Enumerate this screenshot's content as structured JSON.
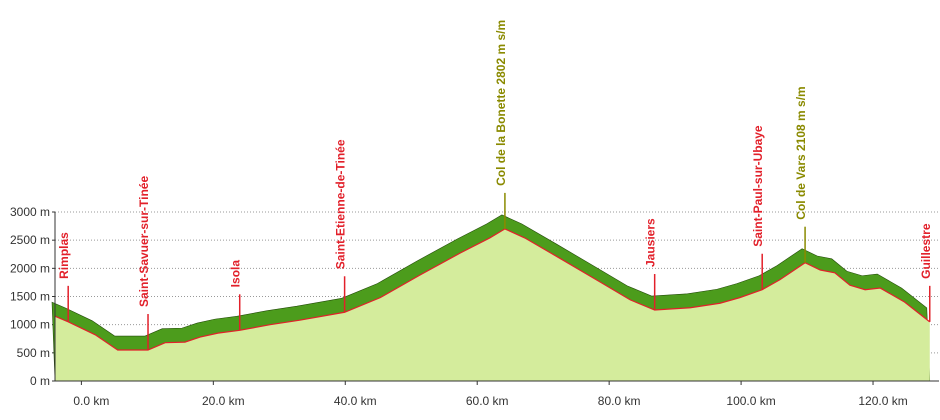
{
  "chart_data": {
    "type": "area",
    "x": [
      -4,
      -2.0,
      2.1,
      5.5,
      10.1,
      12.7,
      15.7,
      18.0,
      20.7,
      24.0,
      28.6,
      33.1,
      39.9,
      45.3,
      51.3,
      57.4,
      61.9,
      64.2,
      67.2,
      72.5,
      78.6,
      83.2,
      86.9,
      92.3,
      96.8,
      99.8,
      103.2,
      105.9,
      109.7,
      112.0,
      114.2,
      116.5,
      118.8,
      121.1,
      124.8,
      128.6
    ],
    "values": [
      1150,
      1050,
      820,
      550,
      550,
      680,
      690,
      780,
      850,
      900,
      1000,
      1080,
      1220,
      1480,
      1880,
      2270,
      2540,
      2700,
      2540,
      2180,
      1760,
      1440,
      1260,
      1300,
      1380,
      1480,
      1620,
      1800,
      2100,
      1970,
      1920,
      1700,
      1620,
      1650,
      1400,
      1050
    ],
    "color": "#d4ec9c",
    "top_color": "#4c9c1c",
    "line_color": "#e2202a",
    "xlim": [
      -4,
      130
    ],
    "xticks": [
      {
        "value": 0,
        "label": "0.0 km"
      },
      {
        "value": 20,
        "label": "20.0 km"
      },
      {
        "value": 40,
        "label": "40.0 km"
      },
      {
        "value": 60,
        "label": "60.0 km"
      },
      {
        "value": 80,
        "label": "80.0 km"
      },
      {
        "value": 100,
        "label": "100.0 km"
      },
      {
        "value": 120,
        "label": "120.0 km"
      }
    ],
    "ylim": [
      0,
      3000
    ],
    "yticks": [
      {
        "value": 0,
        "label": "0 m"
      },
      {
        "value": 500,
        "label": "500 m"
      },
      {
        "value": 1000,
        "label": "1000 m"
      },
      {
        "value": 1500,
        "label": "1500 m"
      },
      {
        "value": 2000,
        "label": "2000 m"
      },
      {
        "value": 2500,
        "label": "2500 m"
      },
      {
        "value": 3000,
        "label": "3000 m"
      }
    ],
    "grid": true,
    "annotations": [
      {
        "text": "Rimplas",
        "x": -2.0,
        "color": "#e2202a"
      },
      {
        "text": "Saint-Savuer-sur-Tinée",
        "x": 10.1,
        "color": "#e2202a"
      },
      {
        "text": "Isola",
        "x": 24.0,
        "color": "#e2202a"
      },
      {
        "text": "Saint-Etienne-de-Tinée",
        "x": 39.9,
        "color": "#e2202a"
      },
      {
        "text": "Col de la Bonette 2802 m s/m",
        "x": 64.2,
        "color": "#8a8a00"
      },
      {
        "text": "Jausiers",
        "x": 86.9,
        "color": "#e2202a"
      },
      {
        "text": "Saint-Paul-sur-Ubaye",
        "x": 103.2,
        "color": "#e2202a"
      },
      {
        "text": "Col de Vars 2108 m s/m",
        "x": 109.7,
        "color": "#8a8a00"
      },
      {
        "text": "Guillestre",
        "x": 128.6,
        "color": "#e2202a"
      }
    ]
  }
}
